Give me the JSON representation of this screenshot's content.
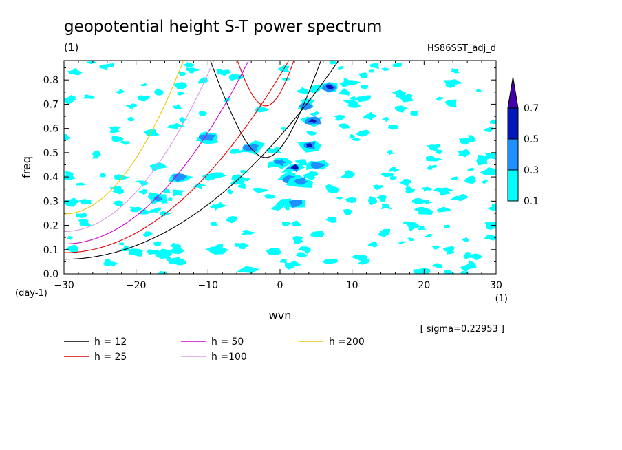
{
  "chart_data": {
    "type": "contour",
    "title": "geopotential height S-T power spectrum",
    "subtitle_left": "(1)",
    "subtitle_right": "HS86SST_adj_d",
    "xlabel": "wvn",
    "ylabel": "freq",
    "x_unit": "(1)",
    "y_unit": "(day-1)",
    "xlim": [
      -30,
      30
    ],
    "ylim": [
      0.0,
      0.88
    ],
    "x_ticks": [
      -30,
      -20,
      -10,
      0,
      10,
      20,
      30
    ],
    "x_tick_labels": [
      "-30",
      "-20",
      "-10",
      "0",
      "10",
      "20",
      "30"
    ],
    "y_ticks": [
      0.0,
      0.1,
      0.2,
      0.3,
      0.4,
      0.5,
      0.6,
      0.7,
      0.8
    ],
    "y_tick_labels": [
      "0.0",
      "0.1",
      "0.2",
      "0.3",
      "0.4",
      "0.5",
      "0.6",
      "0.7",
      "0.8"
    ],
    "sigma_label": "[ sigma=0.22953 ]",
    "colorbar": {
      "levels": [
        0.1,
        0.3,
        0.5,
        0.7
      ],
      "labels": [
        "0.1",
        "0.3",
        "0.5",
        "0.7"
      ],
      "colors": [
        "#00ffff",
        "#1e90ff",
        "#0018b8",
        "#4400aa"
      ]
    },
    "dispersion_curves": [
      {
        "label": "h = 12",
        "h": 12,
        "color": "#000000"
      },
      {
        "label": "h = 25",
        "h": 25,
        "color": "#e00000"
      },
      {
        "label": "h = 50",
        "h": 50,
        "color": "#d000c8"
      },
      {
        "label": "h =100",
        "h": 100,
        "color": "#d89ae0"
      },
      {
        "label": "h =200",
        "h": 200,
        "color": "#e8c800"
      }
    ],
    "spectral_peaks": [
      {
        "x": 7,
        "y": 0.77,
        "level": 0.5
      },
      {
        "x": 4.5,
        "y": 0.63,
        "level": 0.5
      },
      {
        "x": 4,
        "y": 0.53,
        "level": 0.5
      },
      {
        "x": 2,
        "y": 0.44,
        "level": 0.5
      },
      {
        "x": 0,
        "y": 0.46,
        "level": 0.3
      },
      {
        "x": 1.5,
        "y": 0.39,
        "level": 0.3
      },
      {
        "x": 3,
        "y": 0.38,
        "level": 0.3
      },
      {
        "x": 3.5,
        "y": 0.69,
        "level": 0.3
      },
      {
        "x": -4,
        "y": 0.52,
        "level": 0.3
      },
      {
        "x": -14,
        "y": 0.4,
        "level": 0.3
      },
      {
        "x": -17,
        "y": 0.31,
        "level": 0.3
      },
      {
        "x": 5,
        "y": 0.45,
        "level": 0.3
      },
      {
        "x": 2,
        "y": 0.29,
        "level": 0.3
      },
      {
        "x": -10,
        "y": 0.56,
        "level": 0.3
      }
    ]
  }
}
